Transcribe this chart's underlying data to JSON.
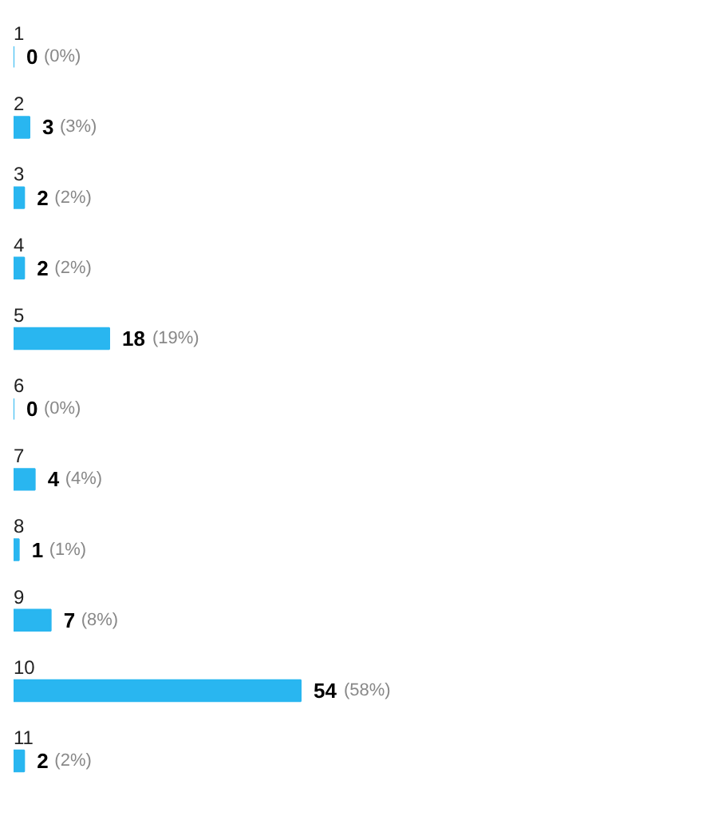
{
  "chart_data": {
    "type": "bar",
    "orientation": "horizontal",
    "categories": [
      "1",
      "2",
      "3",
      "4",
      "5",
      "6",
      "7",
      "8",
      "9",
      "10",
      "11"
    ],
    "values": [
      0,
      3,
      2,
      2,
      18,
      0,
      4,
      1,
      7,
      54,
      2
    ],
    "data_labels": true,
    "annotations": [
      {
        "text": "(0%)",
        "x": 0,
        "y": "1"
      },
      {
        "text": "(3%)",
        "x": 3,
        "y": "2"
      },
      {
        "text": "(2%)",
        "x": 2,
        "y": "3"
      },
      {
        "text": "(2%)",
        "x": 2,
        "y": "4"
      },
      {
        "text": "(19%)",
        "x": 18,
        "y": "5"
      },
      {
        "text": "(0%)",
        "x": 0,
        "y": "6"
      },
      {
        "text": "(4%)",
        "x": 4,
        "y": "7"
      },
      {
        "text": "(1%)",
        "x": 1,
        "y": "8"
      },
      {
        "text": "(8%)",
        "x": 7,
        "y": "9"
      },
      {
        "text": "(58%)",
        "x": 54,
        "y": "10"
      },
      {
        "text": "(2%)",
        "x": 2,
        "y": "11"
      }
    ],
    "color": "#29b6f0",
    "grid": false
  }
}
